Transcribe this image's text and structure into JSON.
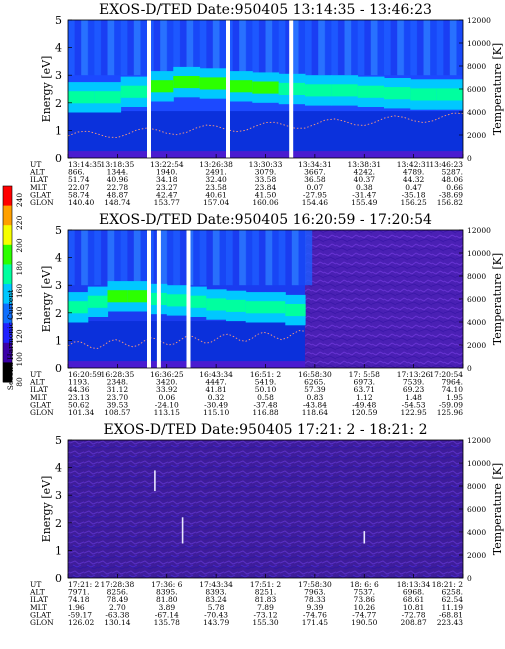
{
  "chart_data": [
    {
      "type": "heatmap",
      "title": "EXOS-D/TED   Date:950405  13:14:35 - 13:46:23",
      "ylabel": "Energy [eV]",
      "y2label": "Temperature [K]",
      "ylim": [
        0,
        5
      ],
      "y2lim": [
        0,
        12000
      ],
      "yticks": [
        "0",
        "1",
        "2",
        "3",
        "4",
        "5"
      ],
      "y2ticks": [
        "0",
        "2000",
        "4000",
        "6000",
        "8000",
        "10000",
        "12000"
      ],
      "ephem": {
        "labels": [
          "UT",
          "ALT",
          "ILAT",
          "MLT",
          "GLAT",
          "GLON"
        ],
        "columns": [
          [
            "13:14:35",
            "866.",
            "51.74",
            "22.07",
            "58.74",
            "140.40"
          ],
          [
            "13:18:35",
            "1344.",
            "40.96",
            "22.78",
            "48.87",
            "148.74"
          ],
          [
            "13:22:54",
            "1940.",
            "34.18",
            "23.27",
            "42.47",
            "153.77"
          ],
          [
            "13:26:38",
            "2491.",
            "32.40",
            "23.58",
            "40.61",
            "157.04"
          ],
          [
            "13:30:33",
            "3079.",
            "33.58",
            "23.84",
            "41.50",
            "160.06"
          ],
          [
            "13:34:31",
            "3667.",
            "36.58",
            "0.07",
            "-27.95",
            "154.46"
          ],
          [
            "13:38:31",
            "4242.",
            "40.37",
            "0.38",
            "-31.47",
            "155.49"
          ],
          [
            "13:42:31",
            "4789.",
            "44.32",
            "0.47",
            "-35.18",
            "156.25"
          ],
          [
            "13:46:23",
            "5287.",
            "48.06",
            "0.66",
            "-38.69",
            "156.82"
          ]
        ]
      },
      "gaps": [
        0.2,
        0.4,
        0.56
      ],
      "band_energy": [
        2.2,
        2.2,
        2.4,
        2.6,
        2.75,
        2.7,
        2.6,
        2.55,
        2.5,
        2.45,
        2.45,
        2.4,
        2.35,
        2.3,
        2.3
      ]
    },
    {
      "type": "heatmap",
      "title": "EXOS-D/TED   Date:950405  16:20:59 - 17:20:54",
      "ylabel": "Energy [eV]",
      "y2label": "Temperature [K]",
      "ylim": [
        0,
        5
      ],
      "y2lim": [
        0,
        12000
      ],
      "yticks": [
        "0",
        "1",
        "2",
        "3",
        "4",
        "5"
      ],
      "y2ticks": [
        "0",
        "2000",
        "4000",
        "6000",
        "8000",
        "10000",
        "12000"
      ],
      "ephem": {
        "labels": [
          "UT",
          "ALT",
          "ILAT",
          "MLT",
          "GLAT",
          "GLON"
        ],
        "columns": [
          [
            "16:20:59",
            "1193.",
            "44.36",
            "23.13",
            "50.62",
            "101.34"
          ],
          [
            "16:28:35",
            "2348.",
            "31.12",
            "23.70",
            "39.53",
            "108.57"
          ],
          [
            "16:36:25",
            "3420.",
            "33.92",
            "0.06",
            "-24.10",
            "113.15"
          ],
          [
            "16:43:34",
            "4447.",
            "41.81",
            "0.32",
            "-30.49",
            "115.10"
          ],
          [
            "16:51: 2",
            "5419.",
            "50.10",
            "0.58",
            "-37.48",
            "116.88"
          ],
          [
            "16:58:30",
            "6265.",
            "57.39",
            "0.83",
            "-43.84",
            "118.64"
          ],
          [
            "17: 5:58",
            "6973.",
            "63.71",
            "1.12",
            "-49.48",
            "120.59"
          ],
          [
            "17:13:26",
            "7539.",
            "69.23",
            "1.48",
            "-54.53",
            "122.95"
          ],
          [
            "17:20:54",
            "7964.",
            "74.10",
            "1.95",
            "-59.09",
            "125.96"
          ]
        ]
      },
      "gaps": [
        0.2,
        0.225,
        0.3
      ],
      "band_energy": [
        2.2,
        2.4,
        2.6,
        2.6,
        2.5,
        2.45,
        2.4,
        2.3,
        2.25,
        2.2,
        2.2,
        2.1
      ]
    },
    {
      "type": "heatmap",
      "title": "EXOS-D/TED   Date:950405  17:21: 2 - 18:21: 2",
      "ylabel": "Energy [eV]",
      "y2label": "Temperature [K]",
      "ylim": [
        0,
        5
      ],
      "y2lim": [
        0,
        12000
      ],
      "yticks": [
        "0",
        "1",
        "2",
        "3",
        "4",
        "5"
      ],
      "y2ticks": [
        "0",
        "2000",
        "4000",
        "6000",
        "8000",
        "10000",
        "12000"
      ],
      "ephem": {
        "labels": [
          "UT",
          "ALT",
          "ILAT",
          "MLT",
          "GLAT",
          "GLON"
        ],
        "columns": [
          [
            "17:21: 2",
            "7971.",
            "74.18",
            "1.96",
            "-59.17",
            "126.02"
          ],
          [
            "17:28:38",
            "8256.",
            "78.49",
            "2.70",
            "-63.38",
            "130.14"
          ],
          [
            "17:36: 6",
            "8395.",
            "81.80",
            "3.89",
            "-67.14",
            "135.78"
          ],
          [
            "17:43:34",
            "8393.",
            "83.24",
            "5.78",
            "-70.43",
            "143.79"
          ],
          [
            "17:51: 2",
            "8251.",
            "81.83",
            "7.89",
            "-73.12",
            "155.30"
          ],
          [
            "17:58:30",
            "7963.",
            "78.33",
            "9.39",
            "-74.76",
            "171.45"
          ],
          [
            "18: 6: 6",
            "7537.",
            "73.86",
            "10.26",
            "-74.77",
            "190.50"
          ],
          [
            "18:13:34",
            "6968.",
            "68.61",
            "10.81",
            "-72.78",
            "208.87"
          ],
          [
            "18:21: 2",
            "6258.",
            "62.54",
            "11.19",
            "-68.81",
            "223.43"
          ]
        ]
      },
      "gaps": [],
      "band_energy": []
    }
  ],
  "colorbar": {
    "label": "Second Harmonic Current",
    "ticks": [
      "80",
      "100",
      "120",
      "140",
      "160",
      "180",
      "200",
      "220",
      "240"
    ],
    "colors": [
      "#000000",
      "#3b00a8",
      "#1f20ff",
      "#0d6fff",
      "#00c8ff",
      "#00ff9f",
      "#2cff00",
      "#f6ff00",
      "#ffa000",
      "#ff0000"
    ]
  }
}
